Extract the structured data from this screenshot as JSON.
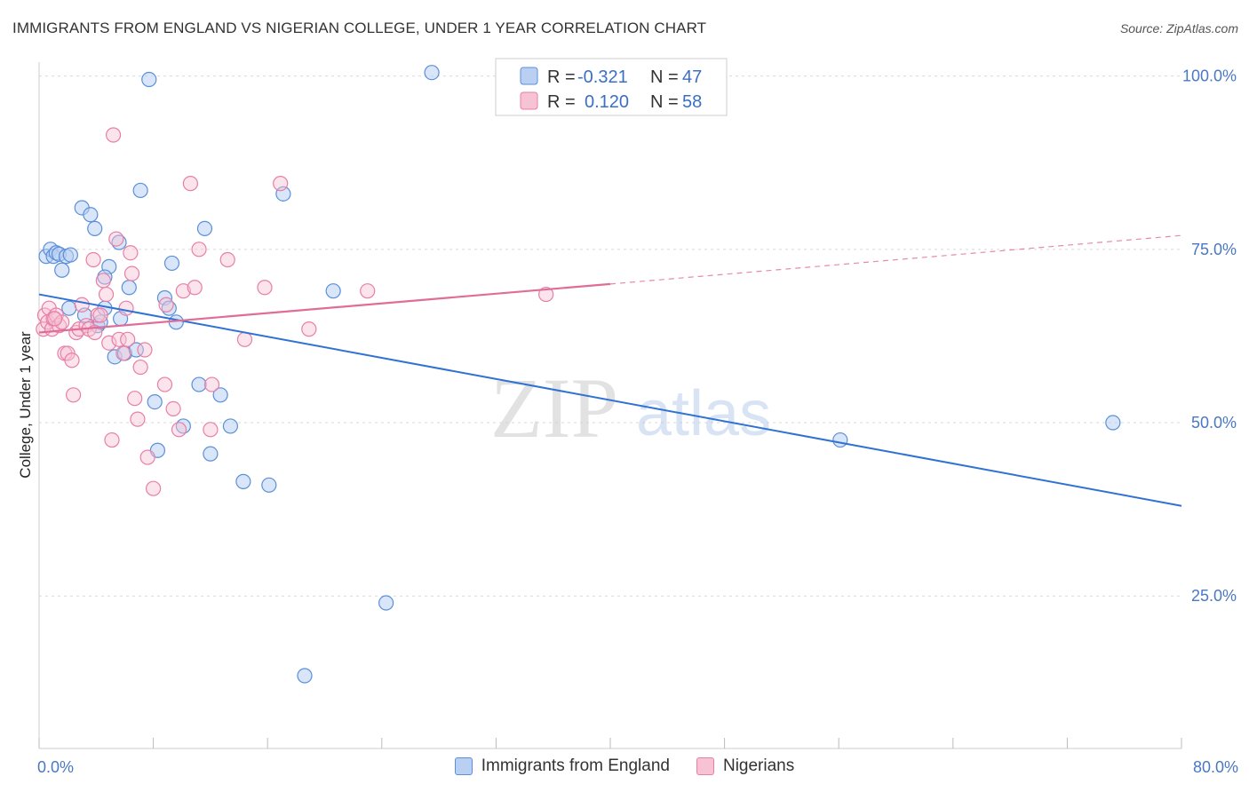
{
  "title": "IMMIGRANTS FROM ENGLAND VS NIGERIAN COLLEGE, UNDER 1 YEAR CORRELATION CHART",
  "source": "Source: ZipAtlas.com",
  "watermark": {
    "zip": "ZIP",
    "atlas": "atlas"
  },
  "colors": {
    "blue": "#5b8fd9",
    "blue_fill": "#b9d0f2",
    "blue_line": "#2f72d4",
    "pink": "#e87fa6",
    "pink_fill": "#f7c3d4",
    "pink_line": "#e06d97",
    "grid": "#d9d9d9"
  },
  "stats_legend": [
    {
      "r_label": "R =",
      "r_value": "-0.321",
      "n_label": "N =",
      "n_value": "47"
    },
    {
      "r_label": "R =",
      "r_value": "0.120",
      "n_label": "N =",
      "n_value": "58"
    }
  ],
  "chart_data": {
    "type": "scatter",
    "title": "IMMIGRANTS FROM ENGLAND VS NIGERIAN COLLEGE, UNDER 1 YEAR CORRELATION CHART",
    "xlabel": "",
    "ylabel": "College, Under 1 year",
    "xlim": [
      0,
      80
    ],
    "ylim": [
      3,
      102
    ],
    "x_tick_labels": [
      {
        "value": 0,
        "label": "0.0%"
      },
      {
        "value": 80,
        "label": "80.0%"
      }
    ],
    "y_tick_labels": [
      {
        "value": 100,
        "label": "100.0%"
      },
      {
        "value": 75,
        "label": "75.0%"
      },
      {
        "value": 50,
        "label": "50.0%"
      },
      {
        "value": 25,
        "label": "25.0%"
      }
    ],
    "grid": true,
    "legend_position": "bottom",
    "series": [
      {
        "name": "Immigrants from England",
        "points": [
          [
            0.5,
            74
          ],
          [
            0.8,
            75
          ],
          [
            1.0,
            74
          ],
          [
            1.2,
            74.5
          ],
          [
            1.4,
            74.3
          ],
          [
            1.6,
            72
          ],
          [
            1.9,
            74
          ],
          [
            2.2,
            74.2
          ],
          [
            3.0,
            81
          ],
          [
            3.6,
            80
          ],
          [
            3.9,
            78
          ],
          [
            2.1,
            66.5
          ],
          [
            3.2,
            65.5
          ],
          [
            4.1,
            64
          ],
          [
            4.3,
            64.5
          ],
          [
            4.6,
            66.5
          ],
          [
            4.9,
            72.5
          ],
          [
            5.3,
            59.5
          ],
          [
            5.6,
            76
          ],
          [
            5.7,
            65
          ],
          [
            6.0,
            60
          ],
          [
            6.3,
            69.5
          ],
          [
            6.8,
            60.5
          ],
          [
            7.1,
            83.5
          ],
          [
            7.7,
            99.5
          ],
          [
            8.1,
            53
          ],
          [
            8.3,
            46
          ],
          [
            8.8,
            68
          ],
          [
            9.1,
            66.5
          ],
          [
            9.3,
            73
          ],
          [
            9.6,
            64.5
          ],
          [
            10.1,
            49.5
          ],
          [
            11.2,
            55.5
          ],
          [
            11.6,
            78
          ],
          [
            12.0,
            45.5
          ],
          [
            12.7,
            54
          ],
          [
            13.4,
            49.5
          ],
          [
            14.3,
            41.5
          ],
          [
            16.1,
            41
          ],
          [
            17.1,
            83
          ],
          [
            18.6,
            13.5
          ],
          [
            20.6,
            69
          ],
          [
            24.3,
            24
          ],
          [
            27.5,
            100.5
          ],
          [
            4.6,
            71
          ],
          [
            56.1,
            47.5
          ],
          [
            75.2,
            50
          ]
        ]
      },
      {
        "name": "Nigerians",
        "points": [
          [
            0.3,
            63.5
          ],
          [
            0.4,
            65.5
          ],
          [
            0.6,
            64.5
          ],
          [
            0.7,
            66.5
          ],
          [
            0.9,
            63.5
          ],
          [
            1.0,
            65
          ],
          [
            1.2,
            65.5
          ],
          [
            1.4,
            64
          ],
          [
            1.6,
            64.5
          ],
          [
            1.8,
            60
          ],
          [
            2.0,
            60
          ],
          [
            2.3,
            59
          ],
          [
            2.4,
            54
          ],
          [
            2.6,
            63
          ],
          [
            2.8,
            63.5
          ],
          [
            3.0,
            67
          ],
          [
            3.3,
            64
          ],
          [
            3.5,
            63.5
          ],
          [
            3.8,
            73.5
          ],
          [
            3.9,
            63
          ],
          [
            4.1,
            65.5
          ],
          [
            4.3,
            65.5
          ],
          [
            4.5,
            70.5
          ],
          [
            4.7,
            68.5
          ],
          [
            4.9,
            61.5
          ],
          [
            5.1,
            47.5
          ],
          [
            5.2,
            91.5
          ],
          [
            5.4,
            76.5
          ],
          [
            5.6,
            62
          ],
          [
            5.9,
            60
          ],
          [
            6.1,
            66.5
          ],
          [
            6.2,
            62
          ],
          [
            6.4,
            74.5
          ],
          [
            6.5,
            71.5
          ],
          [
            6.7,
            53.5
          ],
          [
            6.9,
            50.5
          ],
          [
            7.1,
            58
          ],
          [
            7.4,
            60.5
          ],
          [
            7.6,
            45
          ],
          [
            8.0,
            40.5
          ],
          [
            8.9,
            67
          ],
          [
            9.4,
            52
          ],
          [
            9.8,
            49
          ],
          [
            10.1,
            69
          ],
          [
            10.6,
            84.5
          ],
          [
            10.9,
            69.5
          ],
          [
            11.2,
            75
          ],
          [
            12.0,
            49
          ],
          [
            12.1,
            55.5
          ],
          [
            13.2,
            73.5
          ],
          [
            14.4,
            62
          ],
          [
            15.8,
            69.5
          ],
          [
            16.9,
            84.5
          ],
          [
            18.9,
            63.5
          ],
          [
            23.0,
            69
          ],
          [
            35.5,
            68.5
          ],
          [
            8.8,
            55.5
          ],
          [
            1.1,
            65
          ]
        ]
      }
    ],
    "trend_lines": [
      {
        "series": "Immigrants from England",
        "from": [
          0,
          68.5
        ],
        "to": [
          80,
          38
        ],
        "dashed_to": null
      },
      {
        "series": "Nigerians",
        "from": [
          0,
          63
        ],
        "to": [
          40,
          70
        ],
        "dashed_to": [
          80,
          77
        ]
      }
    ]
  }
}
